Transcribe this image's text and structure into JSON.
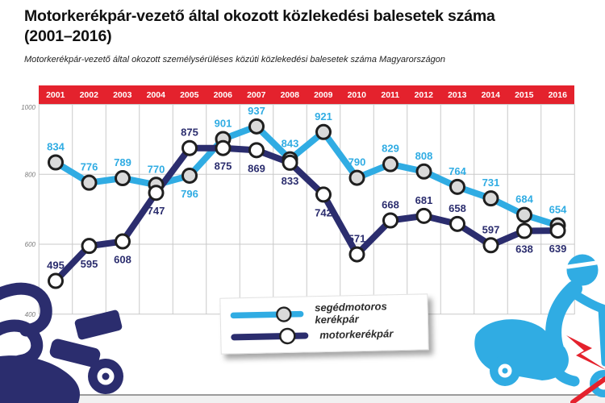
{
  "title": {
    "line1": "Motorkerékpár-vezető által okozott közlekedési balesetek száma",
    "line2": "(2001–2016)"
  },
  "subtitle": "Motorkerékpár-vezető által okozott személysérüléses közúti közlekedési balesetek száma Magyarországon",
  "colors": {
    "accent_red": "#e4222d",
    "moped_blue": "#30ace3",
    "motorcycle_navy": "#2b2d6e",
    "grid": "#c9c9c9",
    "tick_label": "#7a7a7a",
    "marker_stroke": "#1f1f1f",
    "marker_fill_moped": "#dadada",
    "marker_fill_motorcycle": "#ffffff"
  },
  "chart_data": {
    "type": "line",
    "x": [
      2001,
      2002,
      2003,
      2004,
      2005,
      2006,
      2007,
      2008,
      2009,
      2010,
      2011,
      2012,
      2013,
      2014,
      2015,
      2016
    ],
    "series": [
      {
        "name": "segédmotoros kerékpár",
        "color_key": "moped_blue",
        "marker_fill_key": "marker_fill_moped",
        "values": [
          834,
          776,
          789,
          770,
          796,
          901,
          937,
          843,
          921,
          790,
          829,
          808,
          764,
          731,
          684,
          654
        ],
        "label_pos": [
          "above",
          "above",
          "above",
          "above",
          "below",
          "above",
          "above",
          "above",
          "above",
          "above",
          "above",
          "above",
          "above",
          "above",
          "above",
          "above"
        ]
      },
      {
        "name": "motorkerékpár",
        "color_key": "motorcycle_navy",
        "marker_fill_key": "marker_fill_motorcycle",
        "values": [
          495,
          595,
          608,
          747,
          875,
          875,
          869,
          833,
          742,
          571,
          668,
          681,
          658,
          597,
          638,
          639
        ],
        "label_pos": [
          "above",
          "below",
          "below",
          "below",
          "above",
          "below",
          "below",
          "below",
          "below",
          "above",
          "above",
          "above",
          "above",
          "above",
          "below",
          "below"
        ]
      }
    ],
    "y_ticks": [
      1000,
      800,
      600,
      400
    ],
    "ylim": [
      360,
      1010
    ],
    "grid": true,
    "legend_position": "bottom-center"
  }
}
